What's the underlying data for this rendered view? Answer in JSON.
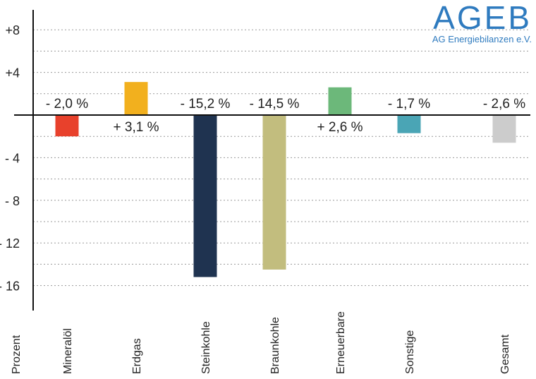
{
  "logo": {
    "brand": "AGEB",
    "subtitle": "AG Energiebilanzen e.V.",
    "color": "#2f7bbf"
  },
  "chart_data": {
    "type": "bar",
    "categories": [
      "Mineralöl",
      "Erdgas",
      "Steinkohle",
      "Braunkohle",
      "Erneuerbare",
      "Sonstige",
      "Gesamt"
    ],
    "values": [
      -2.0,
      3.1,
      -15.2,
      -14.5,
      2.6,
      -1.7,
      -2.6
    ],
    "value_labels": [
      "- 2,0 %",
      "+ 3,1 %",
      "- 15,2 %",
      "- 14,5 %",
      "+ 2,6 %",
      "- 1,7 %",
      "- 2,6 %"
    ],
    "colors": [
      "#e8412c",
      "#f2b01e",
      "#1f3350",
      "#c2bd7e",
      "#6cb87a",
      "#4aa5b5",
      "#cccccc"
    ],
    "xlabel": "Prozent",
    "ylabel": "",
    "y_ticks": [
      8,
      4,
      -4,
      -8,
      -12,
      -16
    ],
    "y_tick_labels": [
      "+8",
      "+4",
      "- 4",
      "- 8",
      "- 12",
      "- 16"
    ],
    "ylim": [
      -18,
      10
    ],
    "grid": true
  }
}
